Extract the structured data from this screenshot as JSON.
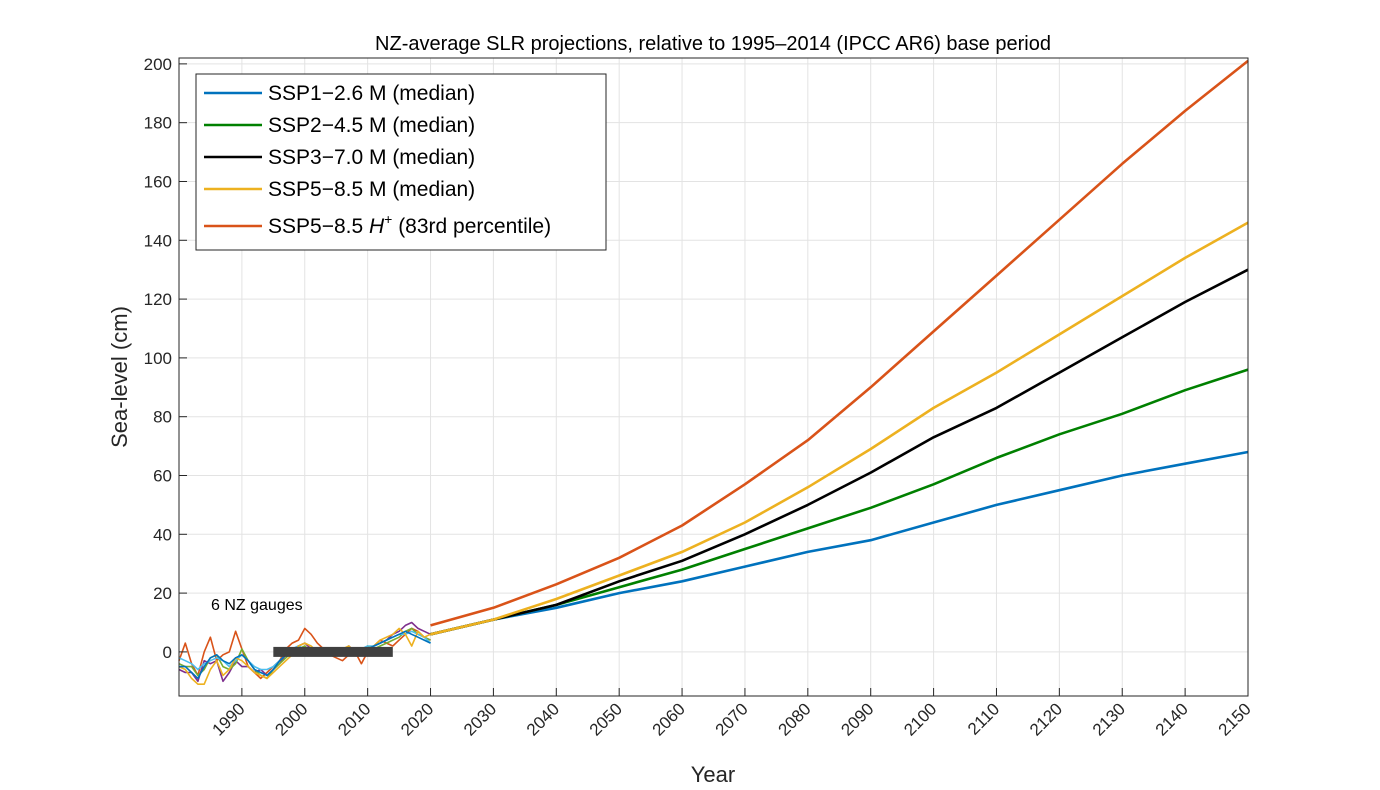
{
  "chart_data": {
    "type": "line",
    "title": "NZ-average SLR projections, relative to 1995–2014 (IPCC AR6) base period",
    "xlabel": "Year",
    "ylabel": "Sea-level (cm)",
    "xlim": [
      1980,
      2150
    ],
    "ylim": [
      -15,
      202
    ],
    "xticks": [
      1990,
      2000,
      2010,
      2020,
      2030,
      2040,
      2050,
      2060,
      2070,
      2080,
      2090,
      2100,
      2110,
      2120,
      2130,
      2140,
      2150
    ],
    "yticks": [
      0,
      20,
      40,
      60,
      80,
      100,
      120,
      140,
      160,
      180,
      200
    ],
    "grid": true,
    "legend_position": "top-left",
    "annotation": "6 NZ gauges",
    "base_period": {
      "label": "1995–2014",
      "x": [
        1995,
        2014
      ],
      "y": 0,
      "color": "#404040"
    },
    "series": [
      {
        "name": "SSP1−2.6 M (median)",
        "color": "#0072BD",
        "x": [
          2020,
          2030,
          2040,
          2050,
          2060,
          2070,
          2080,
          2090,
          2100,
          2110,
          2120,
          2130,
          2140,
          2150
        ],
        "values": [
          6,
          11,
          15,
          20,
          24,
          29,
          34,
          38,
          44,
          50,
          55,
          60,
          64,
          68
        ]
      },
      {
        "name": "SSP2−4.5 M (median)",
        "color": "#008000",
        "x": [
          2020,
          2030,
          2040,
          2050,
          2060,
          2070,
          2080,
          2090,
          2100,
          2110,
          2120,
          2130,
          2140,
          2150
        ],
        "values": [
          6,
          11,
          16,
          22,
          28,
          35,
          42,
          49,
          57,
          66,
          74,
          81,
          89,
          96
        ]
      },
      {
        "name": "SSP3−7.0 M (median)",
        "color": "#000000",
        "x": [
          2020,
          2030,
          2040,
          2050,
          2060,
          2070,
          2080,
          2090,
          2100,
          2110,
          2120,
          2130,
          2140,
          2150
        ],
        "values": [
          6,
          11,
          16,
          24,
          31,
          40,
          50,
          61,
          73,
          83,
          95,
          107,
          119,
          130
        ]
      },
      {
        "name": "SSP5−8.5 M (median)",
        "color": "#EDB120",
        "x": [
          2020,
          2030,
          2040,
          2050,
          2060,
          2070,
          2080,
          2090,
          2100,
          2110,
          2120,
          2130,
          2140,
          2150
        ],
        "values": [
          6,
          11,
          18,
          26,
          34,
          44,
          56,
          69,
          83,
          95,
          108,
          121,
          134,
          146
        ]
      },
      {
        "name": "SSP5−8.5 H",
        "name_superscript": "+",
        "name_suffix": " (83rd percentile)",
        "color": "#D95319",
        "x": [
          2020,
          2030,
          2040,
          2050,
          2060,
          2070,
          2080,
          2090,
          2100,
          2110,
          2120,
          2130,
          2140,
          2150
        ],
        "values": [
          9,
          15,
          23,
          32,
          43,
          57,
          72,
          90,
          109,
          128,
          147,
          166,
          184,
          201
        ]
      }
    ],
    "gauges": [
      {
        "color": "#D95319",
        "x": [
          1980,
          1981,
          1982,
          1983,
          1984,
          1985,
          1986,
          1987,
          1988,
          1989,
          1990,
          1991,
          1992,
          1993,
          1994,
          1995,
          1996,
          1997,
          1998,
          1999,
          2000,
          2001,
          2002,
          2003,
          2004,
          2005,
          2006,
          2007,
          2008,
          2009,
          2010,
          2011,
          2012,
          2013,
          2014,
          2015,
          2016,
          2017,
          2018,
          2019,
          2020
        ],
        "values": [
          -3,
          3,
          -4,
          -8,
          0,
          5,
          -3,
          -1,
          0,
          7,
          1,
          -5,
          -7,
          -9,
          -7,
          -5,
          -3,
          1,
          3,
          4,
          8,
          6,
          3,
          1,
          -1,
          -2,
          -3,
          -1,
          0,
          -4,
          0,
          2,
          4,
          3,
          2,
          4,
          6,
          8,
          7,
          5,
          4
        ]
      },
      {
        "color": "#7E2F8E",
        "x": [
          1980,
          1981,
          1982,
          1983,
          1984,
          1985,
          1986,
          1987,
          1988,
          1989,
          1990,
          1991,
          1992,
          1993,
          1994,
          1995,
          1996,
          1997,
          1998,
          1999,
          2000,
          2001,
          2002,
          2003,
          2004,
          2005,
          2006,
          2007,
          2008,
          2009,
          2010,
          2011,
          2012,
          2013,
          2014,
          2015,
          2016,
          2017,
          2018,
          2019,
          2020
        ],
        "values": [
          -6,
          -7,
          -7,
          -10,
          -3,
          -4,
          -3,
          -10,
          -7,
          -3,
          -5,
          -5,
          -7,
          -6,
          -8,
          -6,
          -4,
          -1,
          1,
          2,
          3,
          1,
          0,
          1,
          1,
          -1,
          0,
          2,
          0,
          -1,
          1,
          2,
          3,
          4,
          6,
          7,
          9,
          10,
          8,
          7,
          6
        ]
      },
      {
        "color": "#77AC30",
        "x": [
          1980,
          1981,
          1982,
          1983,
          1984,
          1985,
          1986,
          1987,
          1988,
          1989,
          1990,
          1991,
          1992,
          1993,
          1994,
          1995,
          1996,
          1997,
          1998,
          1999,
          2000,
          2001,
          2002,
          2003,
          2004,
          2005,
          2006,
          2007,
          2008,
          2009,
          2010,
          2011,
          2012,
          2013,
          2014,
          2015,
          2016,
          2017,
          2018,
          2019,
          2020
        ],
        "values": [
          -4,
          -5,
          -5,
          -8,
          -6,
          -2,
          -1,
          -5,
          -6,
          -4,
          1,
          -3,
          -6,
          -8,
          -9,
          -6,
          -4,
          -2,
          0,
          1,
          2,
          0,
          1,
          0,
          -1,
          0,
          1,
          0,
          1,
          0,
          2,
          1,
          2,
          3,
          4,
          5,
          7,
          8,
          6,
          5,
          4
        ]
      },
      {
        "color": "#4DBEEE",
        "x": [
          1980,
          1981,
          1982,
          1983,
          1984,
          1985,
          1986,
          1987,
          1988,
          1989,
          1990,
          1991,
          1992,
          1993,
          1994,
          1995,
          1996,
          1997,
          1998,
          1999,
          2000,
          2001,
          2002,
          2003,
          2004,
          2005,
          2006,
          2007,
          2008,
          2009,
          2010,
          2011,
          2012,
          2013,
          2014,
          2015,
          2016,
          2017,
          2018,
          2019,
          2020
        ],
        "values": [
          -2,
          -3,
          -4,
          -6,
          -4,
          -3,
          -2,
          -3,
          -5,
          -3,
          -1,
          -3,
          -5,
          -6,
          -6,
          -5,
          -3,
          -1,
          1,
          2,
          1,
          1,
          1,
          0,
          0,
          0,
          1,
          1,
          1,
          1,
          2,
          2,
          3,
          4,
          5,
          6,
          6,
          7,
          6,
          5,
          3
        ]
      },
      {
        "color": "#EDB120",
        "x": [
          1980,
          1981,
          1982,
          1983,
          1984,
          1985,
          1986,
          1987,
          1988,
          1989,
          1990,
          1991,
          1992,
          1993,
          1994,
          1995,
          1996,
          1997,
          1998,
          1999,
          2000,
          2001,
          2002,
          2003,
          2004,
          2005,
          2006,
          2007,
          2008,
          2009,
          2010,
          2011,
          2012,
          2013,
          2014,
          2015,
          2016,
          2017,
          2018,
          2019,
          2020
        ],
        "values": [
          -5,
          -6,
          -9,
          -11,
          -11,
          -6,
          -3,
          -8,
          -6,
          -2,
          -3,
          -5,
          -7,
          -8,
          -9,
          -7,
          -5,
          -3,
          -1,
          2,
          3,
          2,
          0,
          1,
          0,
          -1,
          1,
          2,
          0,
          0,
          1,
          2,
          4,
          5,
          6,
          8,
          6,
          2,
          7,
          5,
          6
        ]
      },
      {
        "color": "#0072BD",
        "x": [
          1980,
          1981,
          1982,
          1983,
          1984,
          1985,
          1986,
          1987,
          1988,
          1989,
          1990,
          1991,
          1992,
          1993,
          1994,
          1995,
          1996,
          1997,
          1998,
          1999,
          2000,
          2001,
          2002,
          2003,
          2004,
          2005,
          2006,
          2007,
          2008,
          2009,
          2010,
          2011,
          2012,
          2013,
          2014,
          2015,
          2016,
          2017,
          2018,
          2019,
          2020
        ],
        "values": [
          -5,
          -5,
          -7,
          -9,
          -5,
          -2,
          -1,
          -3,
          -4,
          -2,
          -1,
          -3,
          -6,
          -7,
          -8,
          -6,
          -3,
          -1,
          0,
          1,
          1,
          1,
          0,
          0,
          0,
          0,
          1,
          1,
          1,
          0,
          1,
          2,
          3,
          4,
          5,
          6,
          7,
          6,
          5,
          4,
          3
        ]
      }
    ]
  }
}
